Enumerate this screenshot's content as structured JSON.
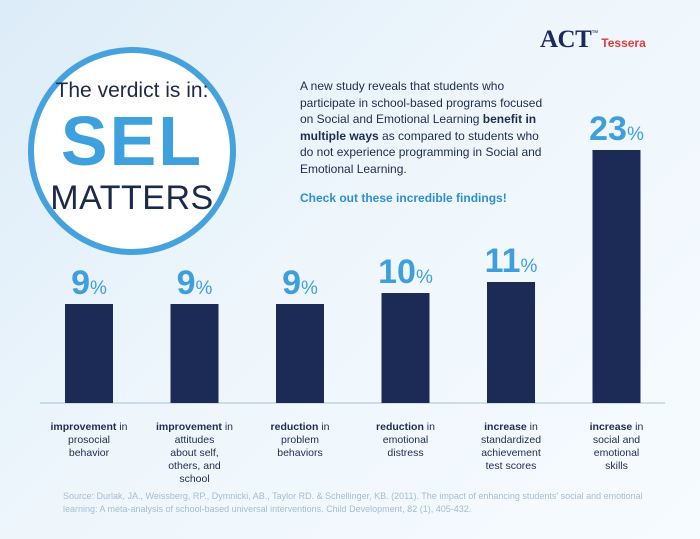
{
  "logo": {
    "brand": "ACT",
    "sub": "Tessera",
    "tm": "™"
  },
  "badge": {
    "line1": "The verdict is in:",
    "line2": "SEL",
    "line3": "MATTERS"
  },
  "intro": {
    "text_before": "A new study reveals that students who participate in school-based programs focused on Social and Emotional Learning ",
    "text_bold": "benefit in multiple ways",
    "text_after": " as compared to students who do not experience programming in Social and Emotional Learning."
  },
  "cta": "Check out these incredible findings!",
  "source": "Source: Durlak, JA., Weissberg, RP., Dymnicki, AB., Taylor RD. & Schellinger, KB. (2011). The impact of enhancing students' social and emotional learning: A meta-analysis of school-based universal interventions. Child Development, 82 (1), 405-432.",
  "colors": {
    "bar": "#1c2a56",
    "accent": "#3f9fdc",
    "text": "#1f2c4d"
  },
  "chart_data": {
    "type": "bar",
    "unit": "%",
    "categories": [
      {
        "bold": "improvement",
        "rest": "in prosocial behavior"
      },
      {
        "bold": "improvement",
        "rest": "in attitudes about self, others, and school"
      },
      {
        "bold": "reduction",
        "rest": "in problem behaviors"
      },
      {
        "bold": "reduction",
        "rest": "in emotional distress"
      },
      {
        "bold": "increase",
        "rest": "in standardized achievement test scores"
      },
      {
        "bold": "increase",
        "rest": "in social and emotional skills"
      }
    ],
    "values": [
      9,
      9,
      9,
      10,
      11,
      23
    ]
  }
}
